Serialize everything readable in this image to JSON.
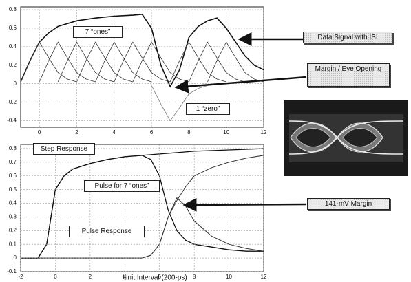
{
  "chart_data": [
    {
      "type": "line",
      "xlim": [
        -1,
        12
      ],
      "ylim": [
        -0.47,
        0.83
      ],
      "xticks": [
        0,
        2,
        4,
        6,
        8,
        10,
        12
      ],
      "yticks": [
        0.8,
        0.6,
        0.4,
        0.2,
        0,
        -0.2,
        -0.4
      ],
      "grid": true,
      "annotations": [
        "7 “ones”",
        "1 “zero”",
        "Data Signal with ISI",
        "Margin / Eye Opening"
      ],
      "series": [
        {
          "color": "#111111",
          "width": 1.6,
          "x": [
            -1,
            -0.5,
            0,
            0.5,
            1,
            2,
            3,
            4,
            5,
            5.5,
            6,
            6.5,
            7,
            7.5,
            8,
            8.5,
            9,
            9.5,
            10,
            10.5,
            11,
            11.5,
            12
          ],
          "values": [
            0.02,
            0.25,
            0.45,
            0.55,
            0.62,
            0.68,
            0.71,
            0.73,
            0.74,
            0.75,
            0.6,
            0.2,
            -0.03,
            0.15,
            0.5,
            0.62,
            0.68,
            0.71,
            0.6,
            0.45,
            0.3,
            0.2,
            0.15
          ]
        },
        {
          "color": "#333333",
          "width": 0.8,
          "x": [
            -1,
            -0.5,
            0,
            0.5,
            1,
            1.5,
            2
          ],
          "values": [
            0.02,
            0.25,
            0.45,
            0.28,
            0.12,
            0.05,
            0.02
          ]
        },
        {
          "color": "#333333",
          "width": 0.8,
          "x": [
            0,
            0.5,
            1,
            1.5,
            2,
            2.5,
            3
          ],
          "values": [
            0.02,
            0.25,
            0.45,
            0.28,
            0.12,
            0.05,
            0.02
          ]
        },
        {
          "color": "#333333",
          "width": 0.8,
          "x": [
            1,
            1.5,
            2,
            2.5,
            3,
            3.5,
            4
          ],
          "values": [
            0.02,
            0.25,
            0.45,
            0.28,
            0.12,
            0.05,
            0.02
          ]
        },
        {
          "color": "#333333",
          "width": 0.8,
          "x": [
            2,
            2.5,
            3,
            3.5,
            4,
            4.5,
            5
          ],
          "values": [
            0.02,
            0.25,
            0.45,
            0.28,
            0.12,
            0.05,
            0.02
          ]
        },
        {
          "color": "#333333",
          "width": 0.8,
          "x": [
            3,
            3.5,
            4,
            4.5,
            5,
            5.5,
            6
          ],
          "values": [
            0.02,
            0.25,
            0.45,
            0.28,
            0.12,
            0.05,
            0.02
          ]
        },
        {
          "color": "#333333",
          "width": 0.8,
          "x": [
            4,
            4.5,
            5,
            5.5,
            6,
            6.5,
            7
          ],
          "values": [
            0.02,
            0.25,
            0.45,
            0.28,
            0.12,
            0.05,
            0.02
          ]
        },
        {
          "color": "#333333",
          "width": 0.8,
          "x": [
            5,
            5.5,
            6,
            6.5,
            7,
            7.5,
            8
          ],
          "values": [
            0.02,
            0.25,
            0.45,
            0.28,
            0.12,
            0.05,
            0.02
          ]
        },
        {
          "color": "#777777",
          "width": 0.8,
          "x": [
            6,
            6.5,
            7,
            7.5,
            8,
            8.5,
            9
          ],
          "values": [
            -0.02,
            -0.22,
            -0.4,
            -0.26,
            -0.11,
            -0.05,
            -0.02
          ]
        },
        {
          "color": "#333333",
          "width": 0.8,
          "x": [
            7,
            7.5,
            8,
            8.5,
            9,
            9.5,
            10
          ],
          "values": [
            0.02,
            0.25,
            0.45,
            0.28,
            0.12,
            0.05,
            0.02
          ]
        },
        {
          "color": "#333333",
          "width": 0.8,
          "x": [
            8,
            8.5,
            9,
            9.5,
            10,
            10.5,
            11
          ],
          "values": [
            0.02,
            0.25,
            0.45,
            0.28,
            0.12,
            0.05,
            0.02
          ]
        },
        {
          "color": "#333333",
          "width": 0.8,
          "x": [
            9,
            9.5,
            10,
            10.5,
            11,
            11.5,
            12
          ],
          "values": [
            0.02,
            0.25,
            0.45,
            0.28,
            0.12,
            0.05,
            0.02
          ]
        }
      ]
    },
    {
      "type": "line",
      "xlim": [
        -2,
        12
      ],
      "ylim": [
        -0.1,
        0.83
      ],
      "xticks": [
        -2,
        0,
        2,
        4,
        6,
        8,
        10,
        12
      ],
      "yticks": [
        0.8,
        0.7,
        0.6,
        0.5,
        0.4,
        0.3,
        0.2,
        0.1,
        0,
        -0.1
      ],
      "grid": true,
      "x_label": "Unit Interval (200-ps)",
      "annotations": [
        "Step Response",
        "Pulse for 7 “ones”",
        "Pulse Response",
        "141-mV Margin"
      ],
      "series": [
        {
          "color": "#111111",
          "width": 1.3,
          "x": [
            -2,
            -1,
            -0.5,
            0,
            0.5,
            1,
            2,
            3,
            4,
            5,
            6,
            8,
            10,
            12
          ],
          "values": [
            0,
            0,
            0.1,
            0.5,
            0.6,
            0.65,
            0.69,
            0.72,
            0.74,
            0.75,
            0.76,
            0.78,
            0.79,
            0.8
          ]
        },
        {
          "color": "#111111",
          "width": 1.3,
          "x": [
            -2,
            -1,
            -0.5,
            0,
            0.5,
            1,
            2,
            3,
            4,
            5,
            5.5,
            6,
            6.5,
            7,
            7.5,
            8,
            9,
            10,
            11,
            12
          ],
          "values": [
            0,
            0,
            0.1,
            0.5,
            0.6,
            0.65,
            0.69,
            0.72,
            0.74,
            0.75,
            0.72,
            0.6,
            0.35,
            0.2,
            0.13,
            0.1,
            0.08,
            0.06,
            0.05,
            0.05
          ]
        },
        {
          "color": "#333333",
          "width": 1,
          "x": [
            -2,
            5,
            5.5,
            6,
            6.5,
            7,
            7.5,
            8,
            9,
            10,
            11,
            12
          ],
          "values": [
            0,
            0,
            0.02,
            0.1,
            0.3,
            0.44,
            0.38,
            0.27,
            0.16,
            0.1,
            0.07,
            0.05
          ]
        },
        {
          "color": "#333333",
          "width": 1,
          "x": [
            -2,
            5,
            5.5,
            6,
            6.5,
            7,
            7.5,
            8,
            9,
            10,
            11,
            12
          ],
          "values": [
            0,
            0,
            0.02,
            0.1,
            0.3,
            0.42,
            0.52,
            0.6,
            0.66,
            0.7,
            0.73,
            0.75
          ]
        }
      ]
    }
  ]
}
